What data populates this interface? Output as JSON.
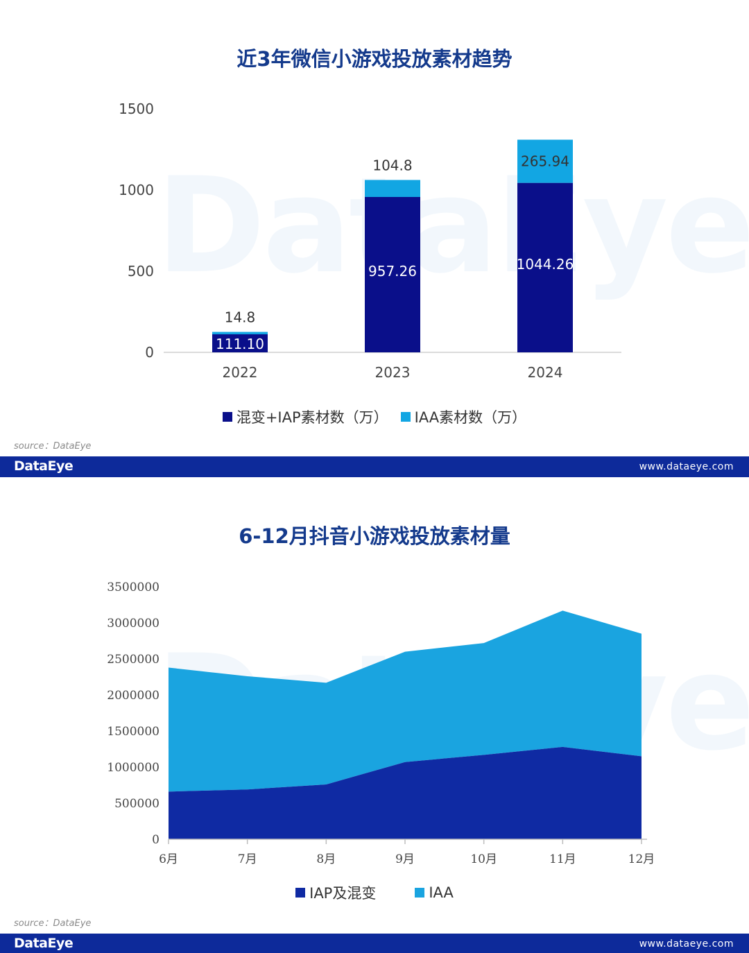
{
  "colors": {
    "dark_blue": "#0a0f8a",
    "light_blue": "#12a6e3",
    "area_dark": "#0f2aa3",
    "area_light": "#1aa4e0",
    "footer": "#0d2a9a",
    "title": "#143a8c"
  },
  "watermark": "DataEye",
  "footer": {
    "logo": "DataEye",
    "url": "www.dataeye.com"
  },
  "source_text": "source：DataEye",
  "chart_data": [
    {
      "type": "bar",
      "stacked": true,
      "title": "近3年微信小游戏投放素材趋势",
      "categories": [
        "2022",
        "2023",
        "2024"
      ],
      "series": [
        {
          "name": "混变+IAP素材数（万）",
          "values": [
            111.1,
            957.26,
            1044.26
          ],
          "labels": [
            "111.10",
            "957.26",
            "1044.26"
          ]
        },
        {
          "name": "IAA素材数（万）",
          "values": [
            14.8,
            104.8,
            265.94
          ],
          "labels": [
            "14.8",
            "104.8",
            "265.94"
          ]
        }
      ],
      "ylim": [
        0,
        1500
      ],
      "yticks": [
        0,
        500,
        1000,
        1500
      ],
      "legend_position": "bottom"
    },
    {
      "type": "area",
      "stacked": true,
      "title": "6-12月抖音小游戏投放素材量",
      "categories": [
        "6月",
        "7月",
        "8月",
        "9月",
        "10月",
        "11月",
        "12月"
      ],
      "series": [
        {
          "name": "IAP及混变",
          "values": [
            660000,
            690000,
            760000,
            1070000,
            1170000,
            1280000,
            1150000
          ]
        },
        {
          "name": "IAA",
          "values": [
            1720000,
            1570000,
            1410000,
            1530000,
            1550000,
            1890000,
            1700000
          ]
        }
      ],
      "ylim": [
        0,
        3500000
      ],
      "yticks": [
        0,
        500000,
        1000000,
        1500000,
        2000000,
        2500000,
        3000000,
        3500000
      ],
      "legend_position": "bottom"
    }
  ]
}
